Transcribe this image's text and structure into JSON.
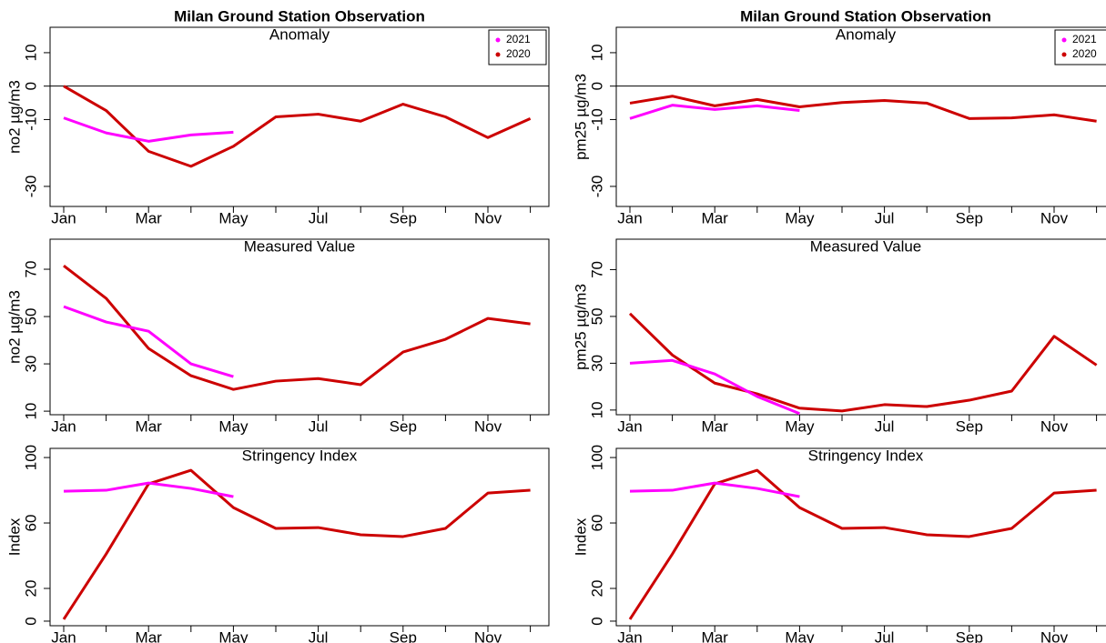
{
  "chart_data": [
    {
      "type": "line",
      "title": "Milan Ground Station Observation",
      "subtitle": "Anomaly",
      "ylabel": "no2 µg/m3",
      "categories": [
        "Jan",
        null,
        "Mar",
        null,
        "May",
        null,
        "Jul",
        null,
        "Sep",
        null,
        "Nov",
        null
      ],
      "series": [
        {
          "name": "2021",
          "color": "#ff00ff",
          "values": [
            -9.5,
            -14,
            -16.5,
            -14.6,
            -13.8,
            null,
            null,
            null,
            null,
            null,
            null,
            null
          ]
        },
        {
          "name": "2020",
          "color": "#cc0000",
          "values": [
            0,
            -7.3,
            -19.5,
            -24,
            -18,
            -9.2,
            -8.4,
            -10.5,
            -5.4,
            -9.2,
            -15.4,
            -9.7
          ]
        }
      ],
      "ylim": [
        -36,
        17.6
      ],
      "yticks": [
        -30,
        -10,
        0,
        10
      ],
      "hline": 0,
      "legend": "top-right"
    },
    {
      "type": "line",
      "subtitle": "Measured Value",
      "ylabel": "no2 µg/m3",
      "categories": [
        "Jan",
        null,
        "Mar",
        null,
        "May",
        null,
        "Jul",
        null,
        "Sep",
        null,
        "Nov",
        null
      ],
      "series": [
        {
          "name": "2021",
          "color": "#ff00ff",
          "values": [
            54.2,
            47.7,
            43.8,
            30,
            24.6,
            null,
            null,
            null,
            null,
            null,
            null,
            null
          ]
        },
        {
          "name": "2020",
          "color": "#cc0000",
          "values": [
            71.5,
            57.7,
            36.5,
            25,
            19.2,
            22.7,
            23.8,
            21.2,
            35,
            40.4,
            49.2,
            46.9
          ]
        }
      ],
      "ylim": [
        8.5,
        82.7
      ],
      "yticks": [
        10,
        30,
        50,
        70
      ]
    },
    {
      "type": "line",
      "subtitle": "Stringency Index",
      "ylabel": "Index",
      "categories": [
        "Jan",
        null,
        "Mar",
        null,
        "May",
        null,
        "Jul",
        null,
        "Sep",
        null,
        "Nov",
        null
      ],
      "series": [
        {
          "name": "2021",
          "color": "#ff00ff",
          "values": [
            79.4,
            80,
            84.4,
            81.1,
            76.1,
            null,
            null,
            null,
            null,
            null,
            null,
            null
          ]
        },
        {
          "name": "2020",
          "color": "#cc0000",
          "values": [
            1.1,
            41,
            83.9,
            92.2,
            69.4,
            56.7,
            57.2,
            52.8,
            51.7,
            56.7,
            78.3,
            80
          ]
        }
      ],
      "ylim": [
        -2.8,
        105.6
      ],
      "yticks": [
        0,
        20,
        60,
        100
      ]
    },
    {
      "type": "line",
      "title": "Milan Ground Station Observation",
      "subtitle": "Anomaly",
      "ylabel": "pm25 µg/m3",
      "categories": [
        "Jan",
        null,
        "Mar",
        null,
        "May",
        null,
        "Jul",
        null,
        "Sep",
        null,
        "Nov",
        null
      ],
      "series": [
        {
          "name": "2021",
          "color": "#ff00ff",
          "values": [
            -9.7,
            -5.7,
            -7,
            -5.9,
            -7.3,
            null,
            null,
            null,
            null,
            null,
            null,
            null
          ]
        },
        {
          "name": "2020",
          "color": "#cc0000",
          "values": [
            -5.1,
            -3,
            -5.9,
            -4,
            -6.2,
            -4.9,
            -4.3,
            -5.1,
            -9.7,
            -9.5,
            -8.6,
            -10.5
          ]
        }
      ],
      "ylim": [
        -36,
        17.6
      ],
      "yticks": [
        -30,
        -10,
        0,
        10
      ],
      "hline": 0,
      "legend": "top-right"
    },
    {
      "type": "line",
      "subtitle": "Measured Value",
      "ylabel": "pm25 µg/m3",
      "categories": [
        "Jan",
        null,
        "Mar",
        null,
        "May",
        null,
        "Jul",
        null,
        "Sep",
        null,
        "Nov",
        null
      ],
      "series": [
        {
          "name": "2021",
          "color": "#ff00ff",
          "values": [
            30,
            31.2,
            25.4,
            15.8,
            8.5,
            null,
            null,
            null,
            null,
            null,
            null,
            null
          ]
        },
        {
          "name": "2020",
          "color": "#cc0000",
          "values": [
            51.2,
            33.5,
            21.5,
            16.9,
            10.8,
            9.6,
            12.3,
            11.5,
            14.2,
            18.1,
            41.5,
            29.2
          ]
        }
      ],
      "ylim": [
        8,
        83
      ],
      "yticks": [
        10,
        30,
        50,
        70
      ]
    },
    {
      "type": "line",
      "subtitle": "Stringency Index",
      "ylabel": "Index",
      "categories": [
        "Jan",
        null,
        "Mar",
        null,
        "May",
        null,
        "Jul",
        null,
        "Sep",
        null,
        "Nov",
        null
      ],
      "series": [
        {
          "name": "2021",
          "color": "#ff00ff",
          "values": [
            79.4,
            80,
            84.4,
            81.1,
            76.1,
            null,
            null,
            null,
            null,
            null,
            null,
            null
          ]
        },
        {
          "name": "2020",
          "color": "#cc0000",
          "values": [
            1.1,
            41,
            83.9,
            92.2,
            69.4,
            56.7,
            57.2,
            52.8,
            51.7,
            56.7,
            78.3,
            80
          ]
        }
      ],
      "ylim": [
        -2.8,
        105.6
      ],
      "yticks": [
        0,
        20,
        60,
        100
      ]
    }
  ]
}
